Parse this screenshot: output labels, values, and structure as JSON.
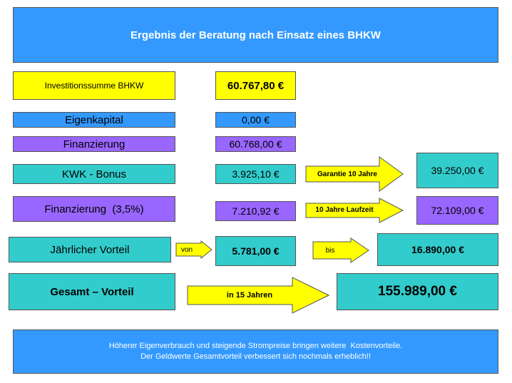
{
  "header": {
    "title": "Ergebnis der Beratung nach Einsatz eines BHKW"
  },
  "rows": {
    "investment": {
      "label": "Investitionssumme BHKW",
      "value": "60.767,80 €"
    },
    "equity": {
      "label": "Eigenkapital",
      "value": "0,00 €"
    },
    "financing": {
      "label": "Finanzierung",
      "value": "60.768,00 €"
    },
    "kwk": {
      "label": "KWK - Bonus",
      "value": "3.925,10 €",
      "arrow_label": "Garantie 10 Jahre",
      "result": "39.250,00 €"
    },
    "financing_rate": {
      "label": "Finanzierung  (3,5%)",
      "value": "7.210,92 €",
      "arrow_label": "10 Jahre Laufzeit",
      "result": "72.109,00 €"
    },
    "annual": {
      "label": "Jährlicher Vorteil",
      "from_label": "von",
      "value": "5.781,00 €",
      "to_label": "bis",
      "result": "16.890,00 €"
    },
    "total": {
      "label": "Gesamt – Vorteil",
      "arrow_label": "in 15 Jahren",
      "result": "155.989,00 €"
    }
  },
  "footer": {
    "line1": "Höherer Eigenverbrauch und steigende Strompreise bringen weitere  Kostenvorteile.",
    "line2": "Der Geldwerte Gesamtvorteil verbessert sich nochmals erheblich!!"
  },
  "colors": {
    "blue": "#3399ff",
    "yellow": "#ffff00",
    "purple": "#9966ff",
    "teal": "#33cccc"
  }
}
